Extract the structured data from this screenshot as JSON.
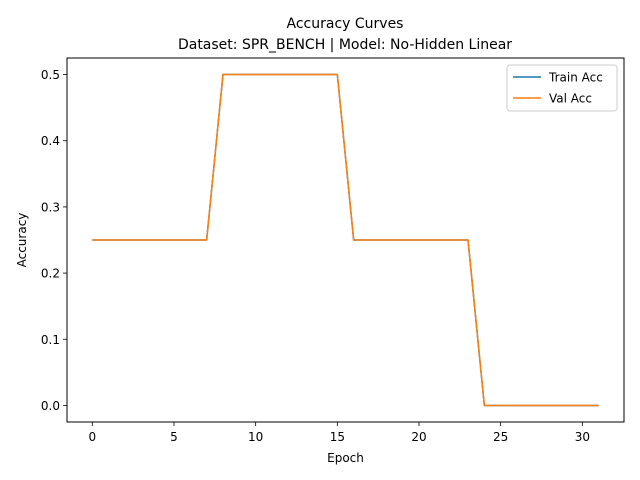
{
  "chart_data": {
    "type": "line",
    "title": "Accuracy Curves",
    "subtitle": "Dataset: SPR_BENCH  |  Model: No-Hidden Linear",
    "xlabel": "Epoch",
    "ylabel": "Accuracy",
    "xlim": [
      -1.55,
      32.55
    ],
    "ylim": [
      -0.025,
      0.525
    ],
    "xticks": [
      0,
      5,
      10,
      15,
      20,
      25,
      30
    ],
    "yticks": [
      0.0,
      0.1,
      0.2,
      0.3,
      0.4,
      0.5
    ],
    "xtick_labels": [
      "0",
      "5",
      "10",
      "15",
      "20",
      "25",
      "30"
    ],
    "ytick_labels": [
      "0.0",
      "0.1",
      "0.2",
      "0.3",
      "0.4",
      "0.5"
    ],
    "legend_position": "top-right",
    "grid": false,
    "x": [
      0,
      1,
      2,
      3,
      4,
      5,
      6,
      7,
      8,
      9,
      10,
      11,
      12,
      13,
      14,
      15,
      16,
      17,
      18,
      19,
      20,
      21,
      22,
      23,
      24,
      25,
      26,
      27,
      28,
      29,
      30,
      31
    ],
    "series": [
      {
        "name": "Train Acc",
        "color": "#1f77b4",
        "values": [
          0.25,
          0.25,
          0.25,
          0.25,
          0.25,
          0.25,
          0.25,
          0.25,
          0.5,
          0.5,
          0.5,
          0.5,
          0.5,
          0.5,
          0.5,
          0.5,
          0.25,
          0.25,
          0.25,
          0.25,
          0.25,
          0.25,
          0.25,
          0.25,
          0.0,
          0.0,
          0.0,
          0.0,
          0.0,
          0.0,
          0.0,
          0.0
        ]
      },
      {
        "name": "Val Acc",
        "color": "#ff7f0e",
        "values": [
          0.25,
          0.25,
          0.25,
          0.25,
          0.25,
          0.25,
          0.25,
          0.25,
          0.5,
          0.5,
          0.5,
          0.5,
          0.5,
          0.5,
          0.5,
          0.5,
          0.25,
          0.25,
          0.25,
          0.25,
          0.25,
          0.25,
          0.25,
          0.25,
          0.0,
          0.0,
          0.0,
          0.0,
          0.0,
          0.0,
          0.0,
          0.0
        ]
      }
    ]
  }
}
